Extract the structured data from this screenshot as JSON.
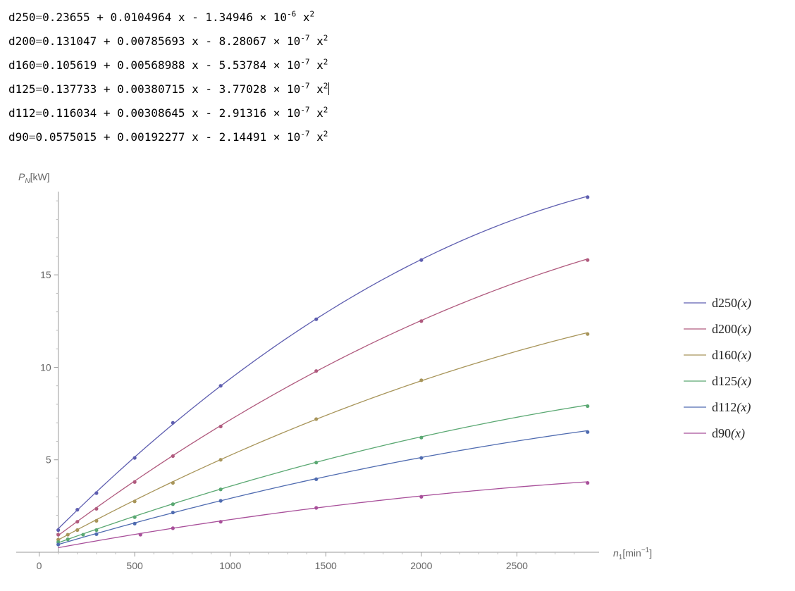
{
  "equations": [
    {
      "name": "d250",
      "c0": "0.23655",
      "c1": "0.0104964",
      "c2": "1.34946",
      "exp": "-6"
    },
    {
      "name": "d200",
      "c0": "0.131047",
      "c1": "0.00785693",
      "c2": "8.28067",
      "exp": "-7"
    },
    {
      "name": "d160",
      "c0": "0.105619",
      "c1": "0.00568988",
      "c2": "5.53784",
      "exp": "-7"
    },
    {
      "name": "d125",
      "c0": "0.137733",
      "c1": "0.00380715",
      "c2": "3.77028",
      "exp": "-7"
    },
    {
      "name": "d112",
      "c0": "0.116034",
      "c1": "0.00308645",
      "c2": "2.91316",
      "exp": "-7"
    },
    {
      "name": "d90",
      "c0": "0.0575015",
      "c1": "0.00192277",
      "c2": "2.14491",
      "exp": "-7"
    }
  ],
  "chart_data": {
    "type": "line",
    "ylabel": {
      "symbol": "P",
      "sub": "N",
      "unit": "[kW]"
    },
    "xlabel": {
      "symbol": "n",
      "sub": "1",
      "unit": "[min",
      "unit_exp": "−1",
      "unit_close": "]"
    },
    "xlim": [
      -120,
      2930
    ],
    "ylim": [
      0,
      19.5
    ],
    "xticks": [
      0,
      500,
      1000,
      1500,
      2000,
      2500
    ],
    "yticks": [
      5,
      10,
      15
    ],
    "grid": false,
    "legend_position": "right",
    "series": [
      {
        "name": "d250",
        "legend_arg": "(x)",
        "color": "#5e5eb0",
        "a": 0.23655,
        "b": 0.0104964,
        "c": -1.34946e-06,
        "points": [
          [
            100,
            1.2
          ],
          [
            200,
            2.3
          ],
          [
            300,
            3.2
          ],
          [
            500,
            5.1
          ],
          [
            700,
            7.0
          ],
          [
            950,
            9.0
          ],
          [
            1450,
            12.6
          ],
          [
            2000,
            15.8
          ],
          [
            2870,
            19.2
          ]
        ]
      },
      {
        "name": "d200",
        "legend_arg": "(x)",
        "color": "#b05a7e",
        "a": 0.131047,
        "b": 0.00785693,
        "c": -8.28067e-07,
        "points": [
          [
            100,
            0.95
          ],
          [
            200,
            1.65
          ],
          [
            300,
            2.35
          ],
          [
            500,
            3.8
          ],
          [
            700,
            5.2
          ],
          [
            950,
            6.8
          ],
          [
            1450,
            9.8
          ],
          [
            2000,
            12.5
          ],
          [
            2870,
            15.8
          ]
        ]
      },
      {
        "name": "d160",
        "legend_arg": "(x)",
        "color": "#a8955a",
        "a": 0.105619,
        "b": 0.00568988,
        "c": -5.53784e-07,
        "points": [
          [
            100,
            0.68
          ],
          [
            150,
            0.95
          ],
          [
            200,
            1.2
          ],
          [
            300,
            1.7
          ],
          [
            500,
            2.75
          ],
          [
            700,
            3.75
          ],
          [
            950,
            5.0
          ],
          [
            1450,
            7.2
          ],
          [
            2000,
            9.3
          ],
          [
            2870,
            11.8
          ]
        ]
      },
      {
        "name": "d125",
        "legend_arg": "(x)",
        "color": "#5aa872",
        "a": 0.137733,
        "b": 0.00380715,
        "c": -3.77028e-07,
        "points": [
          [
            100,
            0.55
          ],
          [
            150,
            0.7
          ],
          [
            230,
            0.95
          ],
          [
            300,
            1.2
          ],
          [
            500,
            1.9
          ],
          [
            700,
            2.6
          ],
          [
            950,
            3.4
          ],
          [
            1450,
            4.85
          ],
          [
            2000,
            6.2
          ],
          [
            2870,
            7.9
          ]
        ]
      },
      {
        "name": "d112",
        "legend_arg": "(x)",
        "color": "#4f6bb0",
        "a": 0.116034,
        "b": 0.00308645,
        "c": -2.91316e-07,
        "points": [
          [
            100,
            0.42
          ],
          [
            300,
            0.98
          ],
          [
            500,
            1.55
          ],
          [
            700,
            2.15
          ],
          [
            950,
            2.78
          ],
          [
            1450,
            3.95
          ],
          [
            2000,
            5.1
          ],
          [
            2870,
            6.5
          ]
        ]
      },
      {
        "name": "d90",
        "legend_arg": "(x)",
        "color": "#a84f9a",
        "a": 0.0575015,
        "b": 0.00192277,
        "c": -2.14491e-07,
        "points": [
          [
            530,
            0.95
          ],
          [
            700,
            1.3
          ],
          [
            950,
            1.65
          ],
          [
            1450,
            2.4
          ],
          [
            2000,
            3.0
          ],
          [
            2870,
            3.75
          ]
        ]
      }
    ]
  }
}
